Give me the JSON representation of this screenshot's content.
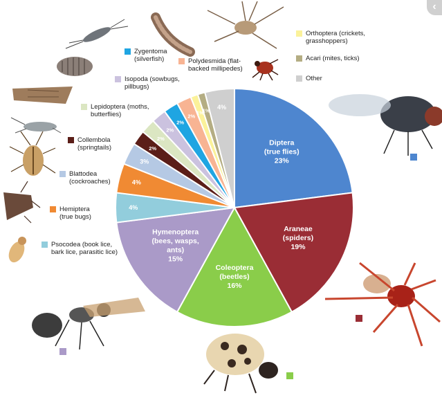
{
  "chart_data": {
    "type": "pie",
    "title": "",
    "slices": [
      {
        "label": "Diptera (true flies)",
        "value": 23,
        "pct_label": "23%",
        "color": "#4e86cf"
      },
      {
        "label": "Araneae (spiders)",
        "value": 19,
        "pct_label": "19%",
        "color": "#9a2d35"
      },
      {
        "label": "Coleoptera (beetles)",
        "value": 16,
        "pct_label": "16%",
        "color": "#8acd4a"
      },
      {
        "label": "Hymenoptera (bees, wasps, ants)",
        "value": 15,
        "pct_label": "15%",
        "color": "#aa9ac8"
      },
      {
        "label": "Psocodea (book lice, bark lice, parasitic lice)",
        "value": 4,
        "pct_label": "4%",
        "color": "#92cddc"
      },
      {
        "label": "Hemiptera (true bugs)",
        "value": 4,
        "pct_label": "4%",
        "color": "#f08a33"
      },
      {
        "label": "Blattodea (cockroaches)",
        "value": 3,
        "pct_label": "3%",
        "color": "#b5c9e4"
      },
      {
        "label": "Collembola (springtails)",
        "value": 2,
        "pct_label": "2%",
        "color": "#5b1e18"
      },
      {
        "label": "Lepidoptera (moths, butterflies)",
        "value": 2,
        "pct_label": "2%",
        "color": "#dbe6c2"
      },
      {
        "label": "Isopoda (sowbugs, pillbugs)",
        "value": 2,
        "pct_label": "2%",
        "color": "#cbc2df"
      },
      {
        "label": "Zygentoma (silverfish)",
        "value": 2,
        "pct_label": "2%",
        "color": "#1fa5e2"
      },
      {
        "label": "Polydesmida (flat-backed millipedes)",
        "value": 2,
        "pct_label": "2%",
        "color": "#f8b493"
      },
      {
        "label": "Orthoptera (crickets, grasshoppers)",
        "value": 1,
        "pct_label": "1%",
        "color": "#fbf29a"
      },
      {
        "label": "Acari (mites, ticks)",
        "value": 1,
        "pct_label": "1%",
        "color": "#b4ad83"
      },
      {
        "label": "Other",
        "value": 4,
        "pct_label": "4%",
        "color": "#cfcfcf"
      }
    ],
    "legend": [
      {
        "label": "Zygentoma\n(silverfish)",
        "color": "#1fa5e2"
      },
      {
        "label": "Polydesmida (flat-\nbacked millipedes)",
        "color": "#f8b493"
      },
      {
        "label": "Orthoptera (crickets,\ngrasshoppers)",
        "color": "#fbf29a"
      },
      {
        "label": "Acari (mites, ticks)",
        "color": "#b4ad83"
      },
      {
        "label": "Isopoda (sowbugs,\npillbugs)",
        "color": "#cbc2df"
      },
      {
        "label": "Other",
        "color": "#cfcfcf"
      },
      {
        "label": "Lepidoptera (moths,\nbutterflies)",
        "color": "#dbe6c2"
      },
      {
        "label": "Collembola\n(springtails)",
        "color": "#5b1e18"
      },
      {
        "label": "Blattodea\n(cockroaches)",
        "color": "#b5c9e4"
      },
      {
        "label": "Hemiptera\n(true bugs)",
        "color": "#f08a33"
      },
      {
        "label": "Psocodea (book lice,\nbark lice, parasitic lice)",
        "color": "#92cddc"
      }
    ],
    "legend_placement": "around-pie"
  },
  "icons": [
    "silverfish-icon",
    "millipede-icon",
    "cricket-icon",
    "tick-icon",
    "pillbug-icon",
    "moth-icon",
    "springtail-icon",
    "cockroach-icon",
    "stinkbug-icon",
    "booklouse-icon",
    "fly-icon",
    "spider-icon",
    "beetle-icon",
    "ant-icon"
  ],
  "ui": {
    "chevron_glyph": "‹"
  }
}
